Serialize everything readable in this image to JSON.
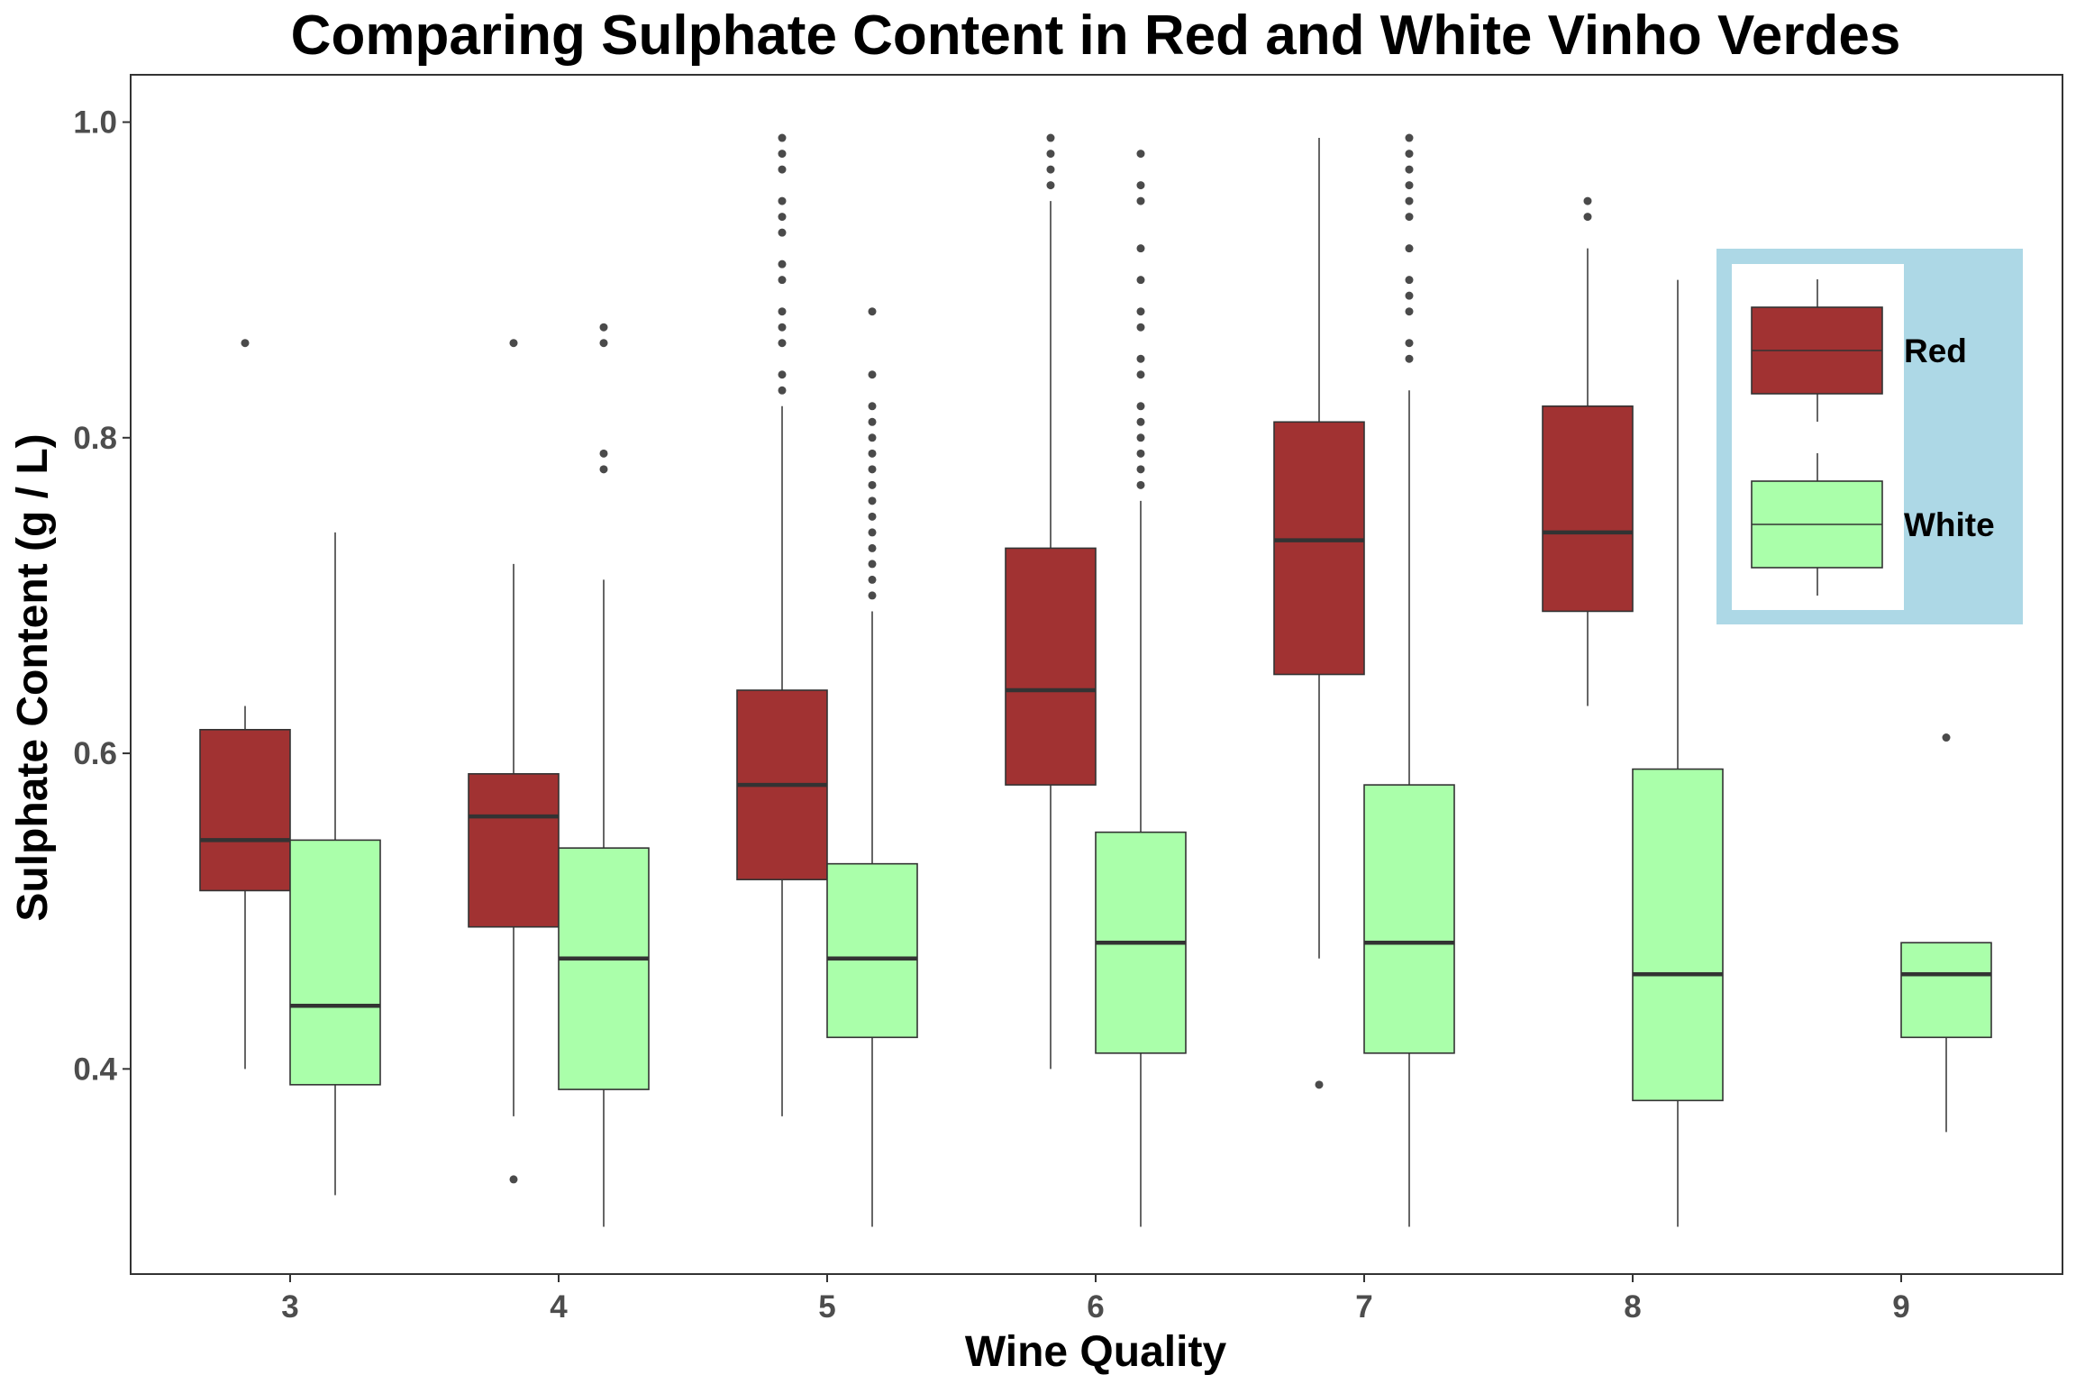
{
  "chart_data": {
    "type": "boxplot",
    "title": "Comparing Sulphate Content in Red and White Vinho Verdes",
    "xlabel": "Wine Quality",
    "ylabel": "Sulphate Content  (g / L)",
    "categories": [
      "3",
      "4",
      "5",
      "6",
      "7",
      "8",
      "9"
    ],
    "ylim": [
      0.27,
      1.03
    ],
    "yticks": [
      "0.4",
      "0.6",
      "0.8",
      "1.0"
    ],
    "grid": false,
    "legend_position": "top-right",
    "series": [
      {
        "name": "Red",
        "color": "#a13232",
        "boxes": [
          {
            "x": "3",
            "min": 0.4,
            "q1": 0.513,
            "median": 0.545,
            "q3": 0.615,
            "max": 0.63,
            "outliers": [
              0.86
            ]
          },
          {
            "x": "4",
            "min": 0.37,
            "q1": 0.49,
            "median": 0.56,
            "q3": 0.587,
            "max": 0.72,
            "outliers": [
              0.86,
              0.33
            ]
          },
          {
            "x": "5",
            "min": 0.37,
            "q1": 0.52,
            "median": 0.58,
            "q3": 0.64,
            "max": 0.82,
            "outliers": [
              0.83,
              0.84,
              0.86,
              0.87,
              0.88,
              0.9,
              0.91,
              0.93,
              0.94,
              0.95,
              0.97,
              0.98,
              0.99
            ]
          },
          {
            "x": "6",
            "min": 0.4,
            "q1": 0.58,
            "median": 0.64,
            "q3": 0.73,
            "max": 0.95,
            "outliers": [
              0.96,
              0.97,
              0.98,
              0.99
            ]
          },
          {
            "x": "7",
            "min": 0.47,
            "q1": 0.65,
            "median": 0.735,
            "q3": 0.81,
            "max": 0.99,
            "outliers": [
              0.39
            ]
          },
          {
            "x": "8",
            "min": 0.63,
            "q1": 0.69,
            "median": 0.74,
            "q3": 0.82,
            "max": 0.92,
            "outliers": [
              0.94,
              0.95
            ]
          }
        ]
      },
      {
        "name": "White",
        "color": "#aaffaa",
        "boxes": [
          {
            "x": "3",
            "min": 0.32,
            "q1": 0.39,
            "median": 0.44,
            "q3": 0.545,
            "max": 0.74,
            "outliers": []
          },
          {
            "x": "4",
            "min": 0.3,
            "q1": 0.387,
            "median": 0.47,
            "q3": 0.54,
            "max": 0.71,
            "outliers": [
              0.78,
              0.79,
              0.86,
              0.87
            ]
          },
          {
            "x": "5",
            "min": 0.3,
            "q1": 0.42,
            "median": 0.47,
            "q3": 0.53,
            "max": 0.69,
            "outliers": [
              0.7,
              0.71,
              0.72,
              0.73,
              0.74,
              0.75,
              0.76,
              0.77,
              0.78,
              0.79,
              0.8,
              0.81,
              0.82,
              0.84,
              0.88
            ]
          },
          {
            "x": "6",
            "min": 0.3,
            "q1": 0.41,
            "median": 0.48,
            "q3": 0.55,
            "max": 0.76,
            "outliers": [
              0.77,
              0.78,
              0.79,
              0.8,
              0.81,
              0.82,
              0.84,
              0.85,
              0.87,
              0.88,
              0.9,
              0.92,
              0.95,
              0.96,
              0.98
            ]
          },
          {
            "x": "7",
            "min": 0.3,
            "q1": 0.41,
            "median": 0.48,
            "q3": 0.58,
            "max": 0.83,
            "outliers": [
              0.85,
              0.86,
              0.88,
              0.89,
              0.9,
              0.92,
              0.94,
              0.95,
              0.96,
              0.97,
              0.98,
              0.99
            ]
          },
          {
            "x": "8",
            "min": 0.3,
            "q1": 0.38,
            "median": 0.46,
            "q3": 0.59,
            "max": 0.9,
            "outliers": []
          },
          {
            "x": "9",
            "min": 0.36,
            "q1": 0.42,
            "median": 0.46,
            "q3": 0.48,
            "max": 0.48,
            "outliers": [
              0.61
            ]
          }
        ]
      }
    ],
    "legend": {
      "items": [
        "Red",
        "White"
      ],
      "background": "#add8e6"
    }
  }
}
